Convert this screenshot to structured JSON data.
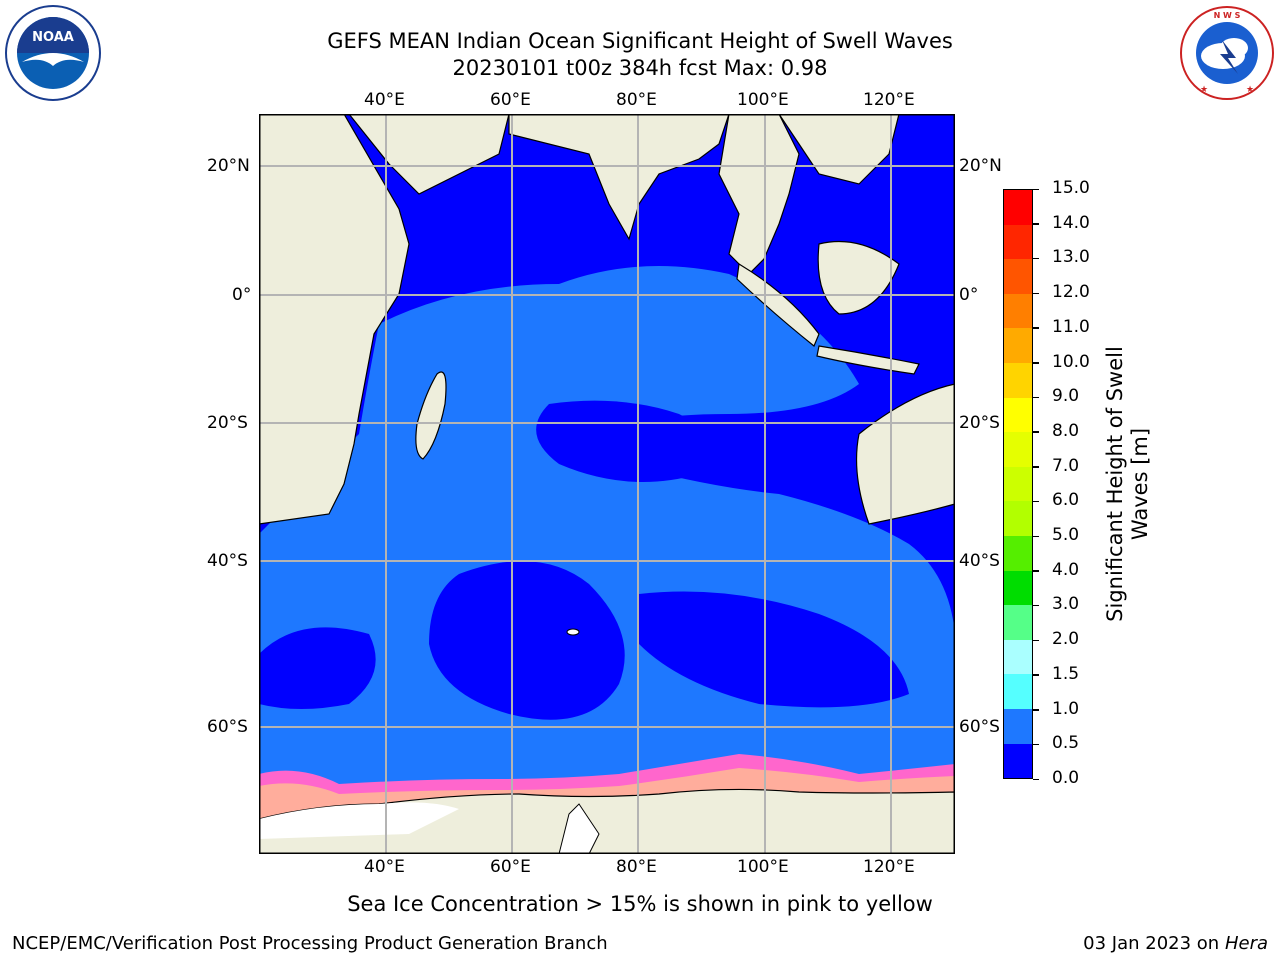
{
  "header": {
    "title_line1": "GEFS MEAN Indian Ocean Significant Height of Swell Waves",
    "title_line2": "20230101 t00z 384h fcst   Max: 0.98"
  },
  "logos": {
    "left": {
      "name": "noaa-logo",
      "text": "NOAA",
      "ring_text": "NATIONAL OCEANIC AND ATMOSPHERIC ADMINISTRATION · U.S. DEPARTMENT OF COMMERCE"
    },
    "right": {
      "name": "nws-logo",
      "ring_text": "NATIONAL WEATHER SERVICE"
    }
  },
  "map": {
    "lon_ticks_top": [
      "40°E",
      "60°E",
      "80°E",
      "100°E",
      "120°E"
    ],
    "lon_ticks_bottom": [
      "40°E",
      "60°E",
      "80°E",
      "100°E",
      "120°E"
    ],
    "lat_ticks_left": [
      "20°N",
      "0°",
      "20°S",
      "40°S",
      "60°S"
    ],
    "lat_ticks_right": [
      "20°N",
      "0°",
      "20°S",
      "40°S",
      "60°S"
    ],
    "colors": {
      "ocean_low": "#0000ff",
      "ocean_mid": "#1e78ff",
      "land": "#eeeedc",
      "grid": "#b4b4b4",
      "ice": "#ff66cc"
    }
  },
  "colorbar": {
    "label": "Significant Height of Swell Waves [m]",
    "ticks": [
      "15.0",
      "14.0",
      "13.0",
      "12.0",
      "11.0",
      "10.0",
      "9.0",
      "8.0",
      "7.0",
      "6.0",
      "5.0",
      "4.0",
      "3.0",
      "2.0",
      "1.5",
      "1.0",
      "0.5",
      "0.0"
    ],
    "colors": [
      "#ff0000",
      "#ff2600",
      "#ff5500",
      "#ff7f00",
      "#ffaa00",
      "#ffd400",
      "#ffff00",
      "#e5ff00",
      "#ccff00",
      "#b2ff00",
      "#55ee00",
      "#00dd00",
      "#55ff88",
      "#aaffff",
      "#55ffff",
      "#00ffff",
      "#1e78ff",
      "#0000ff"
    ]
  },
  "footer": {
    "note": "Sea Ice Concentration > 15% is shown in pink to yellow",
    "credit": "NCEP/EMC/Verification Post Processing Product Generation Branch",
    "date": "03 Jan 2023 on",
    "host": "Hera"
  }
}
